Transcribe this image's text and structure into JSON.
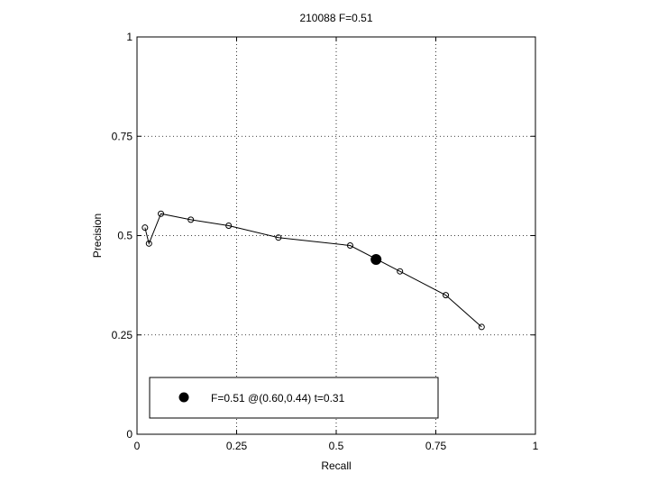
{
  "chart_data": {
    "type": "line",
    "title": "210088 F=0.51",
    "xlabel": "Recall",
    "ylabel": "Precision",
    "xlim": [
      0,
      1
    ],
    "ylim": [
      0,
      1
    ],
    "xticks": [
      "0",
      "0.25",
      "0.5",
      "0.75",
      "1"
    ],
    "yticks": [
      "0",
      "0.25",
      "0.5",
      "0.75",
      "1"
    ],
    "xtick_values": [
      0,
      0.25,
      0.5,
      0.75,
      1
    ],
    "ytick_values": [
      0,
      0.25,
      0.5,
      0.75,
      1
    ],
    "grid": true,
    "series": [
      {
        "x": [
          0.02,
          0.03,
          0.06,
          0.135,
          0.23,
          0.355,
          0.535,
          0.66,
          0.775,
          0.865
        ],
        "y": [
          0.52,
          0.48,
          0.555,
          0.54,
          0.525,
          0.495,
          0.475,
          0.41,
          0.35,
          0.27
        ]
      }
    ],
    "best_point": {
      "x": 0.6,
      "y": 0.44
    },
    "legend": {
      "position": "bottom",
      "text": "F=0.51 @(0.60,0.44) t=0.31"
    }
  }
}
